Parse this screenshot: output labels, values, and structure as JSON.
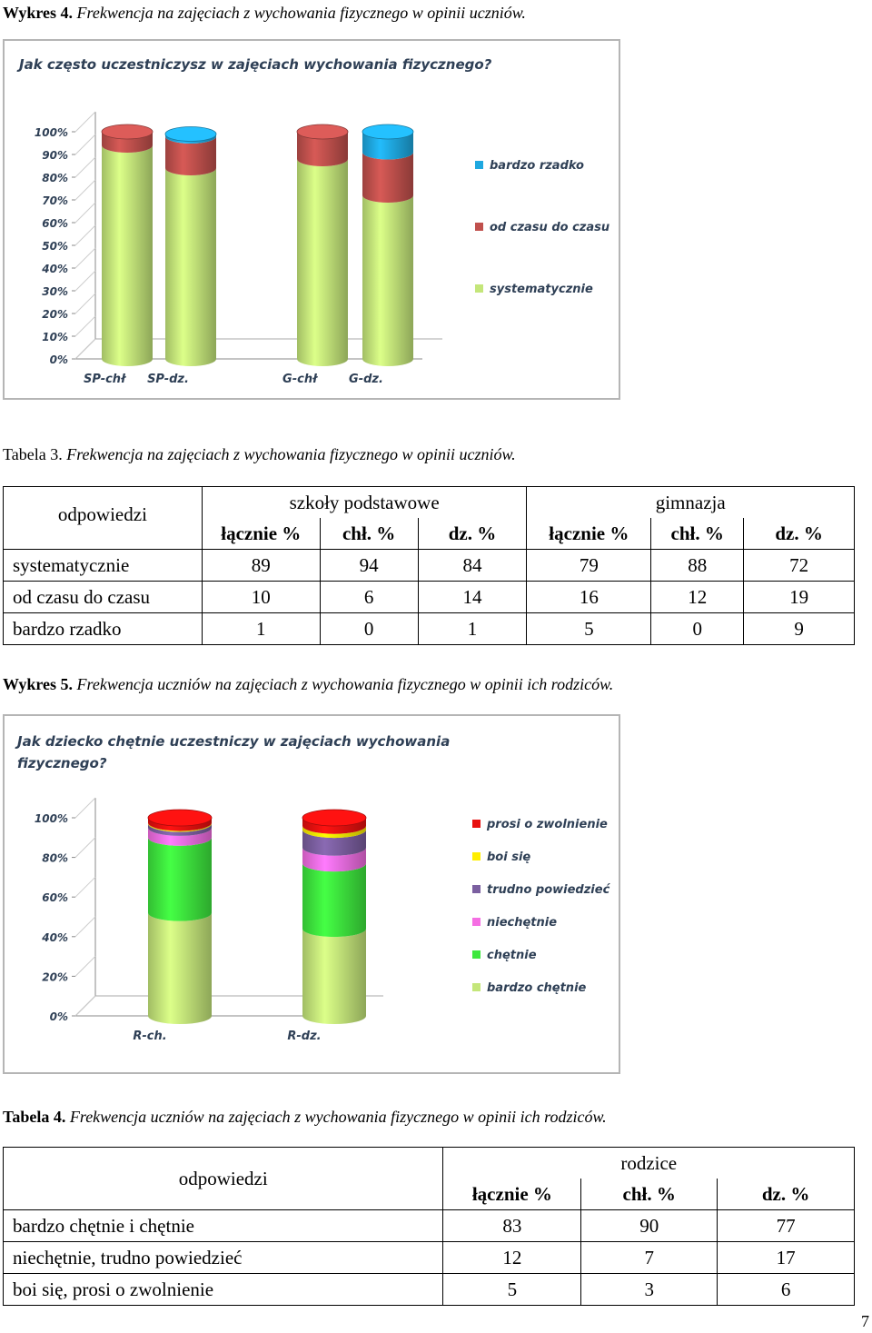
{
  "caption1": {
    "prefix": "Wykres  4.",
    "text": "Frekwencja na zajęciach z wychowania fizycznego w opinii uczniów."
  },
  "chart1": {
    "title": "Jak często uczestniczysz w zajęciach wychowania fizycznego?"
  },
  "caption2": {
    "prefix": "Tabela 3.",
    "text": "Frekwencja na zajęciach z wychowania fizycznego w opinii uczniów."
  },
  "table1": {
    "col_answer": "odpowiedzi",
    "group1": "szkoły podstawowe",
    "group2": "gimnazja",
    "subheaders": [
      "łącznie %",
      "chł. %",
      "dz. %",
      "łącznie %",
      "chł. %",
      "dz. %"
    ],
    "rows": [
      {
        "label": "systematycznie",
        "values": [
          "89",
          "94",
          "84",
          "79",
          "88",
          "72"
        ]
      },
      {
        "label": "od czasu do czasu",
        "values": [
          "10",
          "6",
          "14",
          "16",
          "12",
          "19"
        ]
      },
      {
        "label": "bardzo rzadko",
        "values": [
          "1",
          "0",
          "1",
          "5",
          "0",
          "9"
        ]
      }
    ]
  },
  "caption3": {
    "prefix": "Wykres  5.",
    "text": "Frekwencja uczniów na zajęciach z wychowania fizycznego w opinii ich rodziców."
  },
  "chart2": {
    "title_line1": "Jak dziecko chętnie uczestniczy w zajęciach wychowania",
    "title_line2": "fizycznego?"
  },
  "caption4": {
    "prefix": "Tabela 4.",
    "text": "Frekwencja uczniów na zajęciach z wychowania fizycznego w opinii ich rodziców."
  },
  "table2": {
    "col_answer": "odpowiedzi",
    "group": "rodzice",
    "subheaders": [
      "łącznie %",
      "chł. %",
      "dz. %"
    ],
    "rows": [
      {
        "label": "bardzo chętnie i chętnie",
        "values": [
          "83",
          "90",
          "77"
        ]
      },
      {
        "label": "niechętnie, trudno powiedzieć",
        "values": [
          "12",
          "7",
          "17"
        ]
      },
      {
        "label": "boi się, prosi o zwolnienie",
        "values": [
          "5",
          "3",
          "6"
        ]
      }
    ]
  },
  "page_number": "7",
  "chart_data": [
    {
      "type": "bar",
      "stacked": true,
      "title": "Jak często uczestniczysz w zajęciach wychowania fizycznego?",
      "categories": [
        "SP-chł",
        "SP-dz.",
        "G-chł",
        "G-dz."
      ],
      "series": [
        {
          "name": "systematycznie",
          "color": "#c4e67a",
          "values": [
            94,
            84,
            88,
            72
          ]
        },
        {
          "name": "od czasu do czasu",
          "color": "#c0504d",
          "values": [
            6,
            14,
            12,
            19
          ]
        },
        {
          "name": "bardzo rzadko",
          "color": "#1fa8e0",
          "values": [
            0,
            1,
            0,
            9
          ]
        }
      ],
      "yticks": [
        "0%",
        "10%",
        "20%",
        "30%",
        "40%",
        "50%",
        "60%",
        "70%",
        "80%",
        "90%",
        "100%"
      ],
      "ylim": [
        0,
        100
      ],
      "legend": "right"
    },
    {
      "type": "bar",
      "stacked": true,
      "title": "Jak dziecko chętnie uczestniczy w zajęciach wychowania fizycznego?",
      "categories": [
        "R-ch.",
        "R-dz."
      ],
      "series": [
        {
          "name": "bardzo chętnie",
          "color": "#c4e67a",
          "values": [
            52,
            44
          ]
        },
        {
          "name": "chętnie",
          "color": "#3ee83e",
          "values": [
            38,
            33
          ]
        },
        {
          "name": "niechętnie",
          "color": "#f56ee3",
          "values": [
            5,
            8
          ]
        },
        {
          "name": "trudno powiedzieć",
          "color": "#7b5fa0",
          "values": [
            2,
            9
          ]
        },
        {
          "name": "boi się",
          "color": "#ffee00",
          "values": [
            0.5,
            2
          ]
        },
        {
          "name": "prosi o zwolnienie",
          "color": "#e8100f",
          "values": [
            2.5,
            4
          ]
        }
      ],
      "yticks": [
        "0%",
        "20%",
        "40%",
        "60%",
        "80%",
        "100%"
      ],
      "ylim": [
        0,
        100
      ],
      "legend": "right"
    }
  ]
}
